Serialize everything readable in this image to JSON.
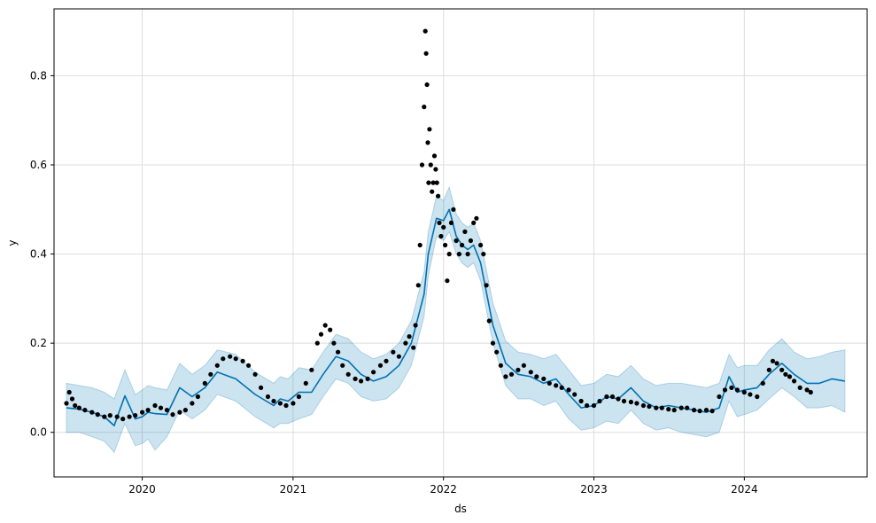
{
  "chart_data": {
    "type": "line",
    "xlabel": "ds",
    "ylabel": "y",
    "grid": true,
    "x_range": [
      "2019-06-01",
      "2024-10-25"
    ],
    "ylim": [
      -0.1,
      0.95
    ],
    "x_ticks": [
      {
        "date": "2020-01-01",
        "label": "2020"
      },
      {
        "date": "2021-01-01",
        "label": "2021"
      },
      {
        "date": "2022-01-01",
        "label": "2022"
      },
      {
        "date": "2023-01-01",
        "label": "2023"
      },
      {
        "date": "2024-01-01",
        "label": "2024"
      }
    ],
    "y_ticks": [
      {
        "value": 0.0,
        "label": "0.0"
      },
      {
        "value": 0.2,
        "label": "0.2"
      },
      {
        "value": 0.4,
        "label": "0.4"
      },
      {
        "value": 0.6,
        "label": "0.6"
      },
      {
        "value": 0.8,
        "label": "0.8"
      }
    ],
    "colors": {
      "forecast_line": "#0072B2",
      "uncertainty_band": "#0072B2",
      "observed_points": "#000000",
      "grid": "#dddddd"
    },
    "series": [
      {
        "role": "forecast",
        "dates": [
          "2019-07-01",
          "2019-08-01",
          "2019-09-01",
          "2019-10-01",
          "2019-10-25",
          "2019-11-20",
          "2019-12-15",
          "2020-01-01",
          "2020-01-15",
          "2020-02-01",
          "2020-03-01",
          "2020-04-01",
          "2020-05-01",
          "2020-06-01",
          "2020-07-01",
          "2020-08-15",
          "2020-10-01",
          "2020-11-15",
          "2020-12-01",
          "2020-12-20",
          "2021-01-15",
          "2021-02-15",
          "2021-03-15",
          "2021-04-15",
          "2021-05-15",
          "2021-06-15",
          "2021-07-15",
          "2021-08-15",
          "2021-09-15",
          "2021-10-15",
          "2021-11-15",
          "2021-11-25",
          "2021-12-15",
          "2022-01-01",
          "2022-01-15",
          "2022-02-01",
          "2022-02-15",
          "2022-03-01",
          "2022-03-15",
          "2022-04-01",
          "2022-05-01",
          "2022-06-01",
          "2022-07-01",
          "2022-08-01",
          "2022-09-01",
          "2022-10-01",
          "2022-11-01",
          "2022-12-01",
          "2023-01-01",
          "2023-02-01",
          "2023-03-01",
          "2023-04-01",
          "2023-05-01",
          "2023-06-01",
          "2023-07-01",
          "2023-08-01",
          "2023-09-01",
          "2023-10-01",
          "2023-11-01",
          "2023-11-25",
          "2023-12-15",
          "2024-01-01",
          "2024-02-01",
          "2024-03-01",
          "2024-04-01",
          "2024-05-01",
          "2024-06-01",
          "2024-07-01",
          "2024-08-01",
          "2024-09-01"
        ],
        "yhat": [
          0.055,
          0.052,
          0.045,
          0.035,
          0.015,
          0.082,
          0.03,
          0.035,
          0.045,
          0.042,
          0.04,
          0.1,
          0.08,
          0.1,
          0.135,
          0.12,
          0.085,
          0.06,
          0.075,
          0.07,
          0.09,
          0.09,
          0.13,
          0.17,
          0.16,
          0.13,
          0.115,
          0.125,
          0.15,
          0.2,
          0.31,
          0.4,
          0.48,
          0.475,
          0.5,
          0.44,
          0.42,
          0.41,
          0.42,
          0.38,
          0.24,
          0.155,
          0.13,
          0.125,
          0.11,
          0.12,
          0.085,
          0.055,
          0.06,
          0.08,
          0.075,
          0.1,
          0.07,
          0.055,
          0.06,
          0.055,
          0.05,
          0.045,
          0.055,
          0.125,
          0.09,
          0.095,
          0.1,
          0.13,
          0.155,
          0.13,
          0.11,
          0.11,
          0.12,
          0.115
        ],
        "yhat_lower": [
          0.0,
          0.0,
          -0.01,
          -0.02,
          -0.045,
          0.02,
          -0.03,
          -0.025,
          -0.015,
          -0.04,
          -0.01,
          0.05,
          0.03,
          0.05,
          0.085,
          0.07,
          0.035,
          0.01,
          0.02,
          0.02,
          0.03,
          0.04,
          0.08,
          0.12,
          0.11,
          0.08,
          0.07,
          0.075,
          0.1,
          0.15,
          0.26,
          0.35,
          0.44,
          0.43,
          0.45,
          0.4,
          0.38,
          0.37,
          0.38,
          0.34,
          0.2,
          0.105,
          0.075,
          0.075,
          0.06,
          0.07,
          0.03,
          0.005,
          0.01,
          0.025,
          0.02,
          0.05,
          0.02,
          0.005,
          0.01,
          0.0,
          -0.005,
          -0.01,
          0.0,
          0.07,
          0.035,
          0.04,
          0.05,
          0.075,
          0.1,
          0.08,
          0.055,
          0.055,
          0.06,
          0.045
        ],
        "yhat_upper": [
          0.11,
          0.105,
          0.1,
          0.09,
          0.075,
          0.14,
          0.085,
          0.095,
          0.105,
          0.1,
          0.095,
          0.155,
          0.13,
          0.15,
          0.185,
          0.175,
          0.135,
          0.11,
          0.125,
          0.12,
          0.145,
          0.14,
          0.18,
          0.22,
          0.21,
          0.18,
          0.165,
          0.175,
          0.2,
          0.25,
          0.36,
          0.45,
          0.53,
          0.52,
          0.55,
          0.49,
          0.47,
          0.46,
          0.47,
          0.43,
          0.29,
          0.205,
          0.18,
          0.175,
          0.165,
          0.175,
          0.14,
          0.105,
          0.11,
          0.13,
          0.125,
          0.15,
          0.12,
          0.105,
          0.11,
          0.11,
          0.105,
          0.1,
          0.11,
          0.175,
          0.145,
          0.15,
          0.15,
          0.185,
          0.21,
          0.18,
          0.165,
          0.17,
          0.18,
          0.185
        ]
      },
      {
        "role": "observed",
        "dates": [
          "2019-07-01",
          "2019-07-08",
          "2019-07-15",
          "2019-07-22",
          "2019-08-01",
          "2019-08-15",
          "2019-09-01",
          "2019-09-15",
          "2019-10-01",
          "2019-10-15",
          "2019-11-01",
          "2019-11-15",
          "2019-12-01",
          "2019-12-15",
          "2020-01-01",
          "2020-01-15",
          "2020-02-01",
          "2020-02-15",
          "2020-03-01",
          "2020-03-15",
          "2020-04-01",
          "2020-04-15",
          "2020-05-01",
          "2020-05-15",
          "2020-06-01",
          "2020-06-15",
          "2020-07-01",
          "2020-07-15",
          "2020-08-01",
          "2020-08-15",
          "2020-09-01",
          "2020-09-15",
          "2020-10-01",
          "2020-10-15",
          "2020-11-01",
          "2020-11-15",
          "2020-12-01",
          "2020-12-15",
          "2021-01-01",
          "2021-01-15",
          "2021-02-01",
          "2021-02-15",
          "2021-03-01",
          "2021-03-10",
          "2021-03-20",
          "2021-04-01",
          "2021-04-10",
          "2021-04-20",
          "2021-05-01",
          "2021-05-15",
          "2021-06-01",
          "2021-06-15",
          "2021-07-01",
          "2021-07-15",
          "2021-08-01",
          "2021-08-15",
          "2021-09-01",
          "2021-09-15",
          "2021-10-01",
          "2021-10-10",
          "2021-10-20",
          "2021-10-25",
          "2021-11-01",
          "2021-11-05",
          "2021-11-10",
          "2021-11-15",
          "2021-11-18",
          "2021-11-20",
          "2021-11-22",
          "2021-11-24",
          "2021-11-26",
          "2021-11-28",
          "2021-12-01",
          "2021-12-04",
          "2021-12-07",
          "2021-12-10",
          "2021-12-13",
          "2021-12-16",
          "2021-12-19",
          "2021-12-22",
          "2021-12-26",
          "2022-01-01",
          "2022-01-05",
          "2022-01-10",
          "2022-01-15",
          "2022-01-20",
          "2022-01-25",
          "2022-02-01",
          "2022-02-08",
          "2022-02-15",
          "2022-02-22",
          "2022-03-01",
          "2022-03-08",
          "2022-03-15",
          "2022-03-22",
          "2022-04-01",
          "2022-04-08",
          "2022-04-15",
          "2022-04-22",
          "2022-05-01",
          "2022-05-10",
          "2022-05-20",
          "2022-06-01",
          "2022-06-15",
          "2022-07-01",
          "2022-07-15",
          "2022-08-01",
          "2022-08-15",
          "2022-09-01",
          "2022-09-15",
          "2022-10-01",
          "2022-10-15",
          "2022-11-01",
          "2022-11-15",
          "2022-12-01",
          "2022-12-15",
          "2023-01-01",
          "2023-01-15",
          "2023-02-01",
          "2023-02-15",
          "2023-03-01",
          "2023-03-15",
          "2023-04-01",
          "2023-04-15",
          "2023-05-01",
          "2023-05-15",
          "2023-06-01",
          "2023-06-15",
          "2023-07-01",
          "2023-07-15",
          "2023-08-01",
          "2023-08-15",
          "2023-09-01",
          "2023-09-15",
          "2023-10-01",
          "2023-10-15",
          "2023-11-01",
          "2023-11-15",
          "2023-12-01",
          "2023-12-15",
          "2024-01-01",
          "2024-01-15",
          "2024-02-01",
          "2024-02-15",
          "2024-03-01",
          "2024-03-10",
          "2024-03-20",
          "2024-04-01",
          "2024-04-10",
          "2024-04-20",
          "2024-05-01",
          "2024-05-15",
          "2024-06-01",
          "2024-06-10"
        ],
        "y": [
          0.065,
          0.09,
          0.075,
          0.06,
          0.055,
          0.05,
          0.045,
          0.04,
          0.035,
          0.038,
          0.035,
          0.03,
          0.035,
          0.038,
          0.045,
          0.05,
          0.06,
          0.055,
          0.05,
          0.04,
          0.045,
          0.05,
          0.065,
          0.08,
          0.11,
          0.13,
          0.15,
          0.165,
          0.17,
          0.165,
          0.16,
          0.15,
          0.13,
          0.1,
          0.08,
          0.07,
          0.065,
          0.06,
          0.065,
          0.08,
          0.11,
          0.14,
          0.2,
          0.22,
          0.24,
          0.23,
          0.2,
          0.18,
          0.15,
          0.13,
          0.12,
          0.115,
          0.12,
          0.135,
          0.15,
          0.16,
          0.18,
          0.17,
          0.2,
          0.215,
          0.19,
          0.24,
          0.33,
          0.42,
          0.6,
          0.73,
          0.9,
          0.85,
          0.78,
          0.65,
          0.56,
          0.68,
          0.6,
          0.54,
          0.56,
          0.62,
          0.59,
          0.56,
          0.53,
          0.47,
          0.44,
          0.46,
          0.42,
          0.34,
          0.4,
          0.47,
          0.5,
          0.43,
          0.4,
          0.42,
          0.45,
          0.4,
          0.43,
          0.47,
          0.48,
          0.42,
          0.4,
          0.33,
          0.25,
          0.2,
          0.18,
          0.15,
          0.125,
          0.13,
          0.14,
          0.15,
          0.135,
          0.125,
          0.12,
          0.11,
          0.105,
          0.1,
          0.095,
          0.085,
          0.07,
          0.06,
          0.06,
          0.07,
          0.08,
          0.08,
          0.075,
          0.07,
          0.068,
          0.065,
          0.06,
          0.058,
          0.055,
          0.055,
          0.052,
          0.05,
          0.055,
          0.055,
          0.05,
          0.048,
          0.05,
          0.048,
          0.08,
          0.095,
          0.1,
          0.095,
          0.09,
          0.085,
          0.08,
          0.11,
          0.14,
          0.16,
          0.155,
          0.14,
          0.13,
          0.125,
          0.115,
          0.1,
          0.095,
          0.09
        ]
      }
    ]
  }
}
